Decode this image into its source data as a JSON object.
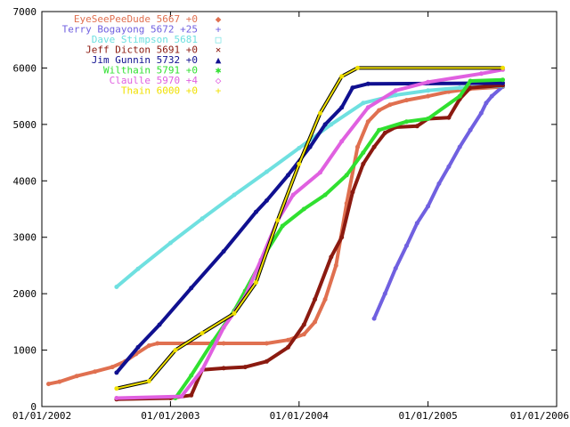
{
  "chart_data": {
    "type": "line",
    "title": "",
    "xlabel": "",
    "ylabel": "",
    "x_axis_kind": "date",
    "xlim": [
      "2002-01-01",
      "2006-01-01"
    ],
    "ylim": [
      0,
      7000
    ],
    "x_ticks": [
      "2002-01-01",
      "2003-01-01",
      "2004-01-01",
      "2005-01-01",
      "2006-01-01"
    ],
    "x_tick_labels": [
      "01/01/2002",
      "01/01/2003",
      "01/01/2004",
      "01/01/2005",
      "01/01/2006"
    ],
    "y_ticks": [
      0,
      1000,
      2000,
      3000,
      4000,
      5000,
      6000,
      7000
    ],
    "y_tick_labels": [
      "0",
      "1000",
      "2000",
      "3000",
      "4000",
      "5000",
      "6000",
      "7000"
    ],
    "grid": false,
    "legend_position": "top-left inside",
    "series": [
      {
        "name": "EyeSeePeeDude 5667 +0",
        "color": "#e07050",
        "marker": "◆",
        "points": [
          [
            "2002-01-20",
            400
          ],
          [
            "2002-02-20",
            440
          ],
          [
            "2002-04-10",
            540
          ],
          [
            "2002-06-01",
            620
          ],
          [
            "2002-07-20",
            700
          ],
          [
            "2002-08-25",
            800
          ],
          [
            "2002-09-25",
            930
          ],
          [
            "2002-11-01",
            1080
          ],
          [
            "2002-11-25",
            1120
          ],
          [
            "2003-06-01",
            1120
          ],
          [
            "2003-10-01",
            1120
          ],
          [
            "2003-12-01",
            1180
          ],
          [
            "2004-01-15",
            1280
          ],
          [
            "2004-02-15",
            1500
          ],
          [
            "2004-03-15",
            1900
          ],
          [
            "2004-04-15",
            2500
          ],
          [
            "2004-05-15",
            3600
          ],
          [
            "2004-06-15",
            4600
          ],
          [
            "2004-07-15",
            5050
          ],
          [
            "2004-08-15",
            5250
          ],
          [
            "2004-09-15",
            5350
          ],
          [
            "2004-11-01",
            5430
          ],
          [
            "2005-01-01",
            5500
          ],
          [
            "2005-03-01",
            5580
          ],
          [
            "2005-05-01",
            5630
          ],
          [
            "2005-08-01",
            5667
          ]
        ]
      },
      {
        "name": "Terry Bogayong 5672 +25",
        "color": "#7060e0",
        "marker": "+",
        "points": [
          [
            "2004-08-01",
            1560
          ],
          [
            "2004-09-01",
            2000
          ],
          [
            "2004-10-01",
            2450
          ],
          [
            "2004-11-01",
            2850
          ],
          [
            "2004-12-01",
            3250
          ],
          [
            "2005-01-01",
            3550
          ],
          [
            "2005-02-01",
            3950
          ],
          [
            "2005-03-01",
            4250
          ],
          [
            "2005-04-01",
            4600
          ],
          [
            "2005-05-01",
            4900
          ],
          [
            "2005-06-01",
            5200
          ],
          [
            "2005-06-15",
            5380
          ],
          [
            "2005-07-01",
            5500
          ],
          [
            "2005-08-01",
            5672
          ]
        ]
      },
      {
        "name": "Dave Stimpson 5681",
        "color": "#6fe0e0",
        "marker": "□",
        "points": [
          [
            "2002-08-01",
            2120
          ],
          [
            "2002-10-01",
            2440
          ],
          [
            "2003-01-01",
            2900
          ],
          [
            "2003-04-01",
            3330
          ],
          [
            "2003-07-01",
            3750
          ],
          [
            "2003-10-01",
            4160
          ],
          [
            "2004-01-01",
            4580
          ],
          [
            "2004-04-01",
            5000
          ],
          [
            "2004-07-01",
            5380
          ],
          [
            "2004-10-01",
            5520
          ],
          [
            "2005-01-01",
            5600
          ],
          [
            "2005-04-01",
            5650
          ],
          [
            "2005-08-01",
            5681
          ]
        ]
      },
      {
        "name": "Jeff Dicton 5691 +0",
        "color": "#8b1a10",
        "marker": "×",
        "points": [
          [
            "2002-08-01",
            130
          ],
          [
            "2003-01-01",
            150
          ],
          [
            "2003-03-01",
            200
          ],
          [
            "2003-04-01",
            650
          ],
          [
            "2003-06-01",
            680
          ],
          [
            "2003-08-01",
            700
          ],
          [
            "2003-10-01",
            800
          ],
          [
            "2003-12-01",
            1050
          ],
          [
            "2004-01-15",
            1450
          ],
          [
            "2004-02-15",
            1900
          ],
          [
            "2004-04-01",
            2650
          ],
          [
            "2004-05-01",
            3000
          ],
          [
            "2004-06-01",
            3800
          ],
          [
            "2004-07-01",
            4300
          ],
          [
            "2004-08-01",
            4600
          ],
          [
            "2004-09-01",
            4850
          ],
          [
            "2004-10-01",
            4950
          ],
          [
            "2004-12-01",
            4970
          ],
          [
            "2005-01-01",
            5100
          ],
          [
            "2005-03-01",
            5120
          ],
          [
            "2005-04-01",
            5450
          ],
          [
            "2005-05-01",
            5650
          ],
          [
            "2005-08-01",
            5691
          ]
        ]
      },
      {
        "name": "Jim Gunnin 5732 +0",
        "color": "#101090",
        "marker": "▲",
        "points": [
          [
            "2002-08-01",
            600
          ],
          [
            "2002-10-01",
            1050
          ],
          [
            "2002-12-01",
            1450
          ],
          [
            "2003-03-01",
            2100
          ],
          [
            "2003-06-01",
            2750
          ],
          [
            "2003-09-01",
            3450
          ],
          [
            "2003-10-01",
            3650
          ],
          [
            "2003-12-01",
            4100
          ],
          [
            "2004-02-01",
            4600
          ],
          [
            "2004-03-15",
            5000
          ],
          [
            "2004-05-01",
            5300
          ],
          [
            "2004-06-01",
            5650
          ],
          [
            "2004-07-15",
            5720
          ],
          [
            "2005-08-01",
            5732
          ]
        ]
      },
      {
        "name": "Wilthain 5791 +0",
        "color": "#30e030",
        "marker": "✱",
        "points": [
          [
            "2003-01-15",
            150
          ],
          [
            "2003-03-01",
            550
          ],
          [
            "2003-05-01",
            1150
          ],
          [
            "2003-07-01",
            1700
          ],
          [
            "2003-08-01",
            2050
          ],
          [
            "2003-10-01",
            2750
          ],
          [
            "2003-11-15",
            3200
          ],
          [
            "2004-01-15",
            3500
          ],
          [
            "2004-03-15",
            3750
          ],
          [
            "2004-05-15",
            4100
          ],
          [
            "2004-07-01",
            4500
          ],
          [
            "2004-08-15",
            4900
          ],
          [
            "2004-11-01",
            5050
          ],
          [
            "2005-01-01",
            5100
          ],
          [
            "2005-04-01",
            5500
          ],
          [
            "2005-05-01",
            5770
          ],
          [
            "2005-08-01",
            5791
          ]
        ]
      },
      {
        "name": "Claulle 5970 +4",
        "color": "#e060e0",
        "marker": "◇",
        "points": [
          [
            "2002-08-01",
            150
          ],
          [
            "2003-02-01",
            180
          ],
          [
            "2003-04-01",
            650
          ],
          [
            "2003-06-01",
            1400
          ],
          [
            "2003-08-01",
            1950
          ],
          [
            "2003-09-15",
            2600
          ],
          [
            "2003-11-01",
            3300
          ],
          [
            "2003-12-15",
            3750
          ],
          [
            "2004-03-01",
            4150
          ],
          [
            "2004-05-01",
            4700
          ],
          [
            "2004-07-15",
            5300
          ],
          [
            "2004-10-01",
            5600
          ],
          [
            "2005-01-01",
            5750
          ],
          [
            "2005-06-01",
            5900
          ],
          [
            "2005-08-01",
            5970
          ]
        ]
      },
      {
        "name": "Thain 6000 +0",
        "color": "#f0e000",
        "outline": "#000000",
        "marker": "+",
        "points": [
          [
            "2002-08-01",
            320
          ],
          [
            "2002-11-01",
            450
          ],
          [
            "2003-01-15",
            1000
          ],
          [
            "2003-04-01",
            1300
          ],
          [
            "2003-07-01",
            1650
          ],
          [
            "2003-09-01",
            2200
          ],
          [
            "2003-11-01",
            3300
          ],
          [
            "2004-01-01",
            4300
          ],
          [
            "2004-03-01",
            5200
          ],
          [
            "2004-05-01",
            5850
          ],
          [
            "2004-06-15",
            6000
          ],
          [
            "2005-08-01",
            6000
          ]
        ]
      }
    ]
  }
}
